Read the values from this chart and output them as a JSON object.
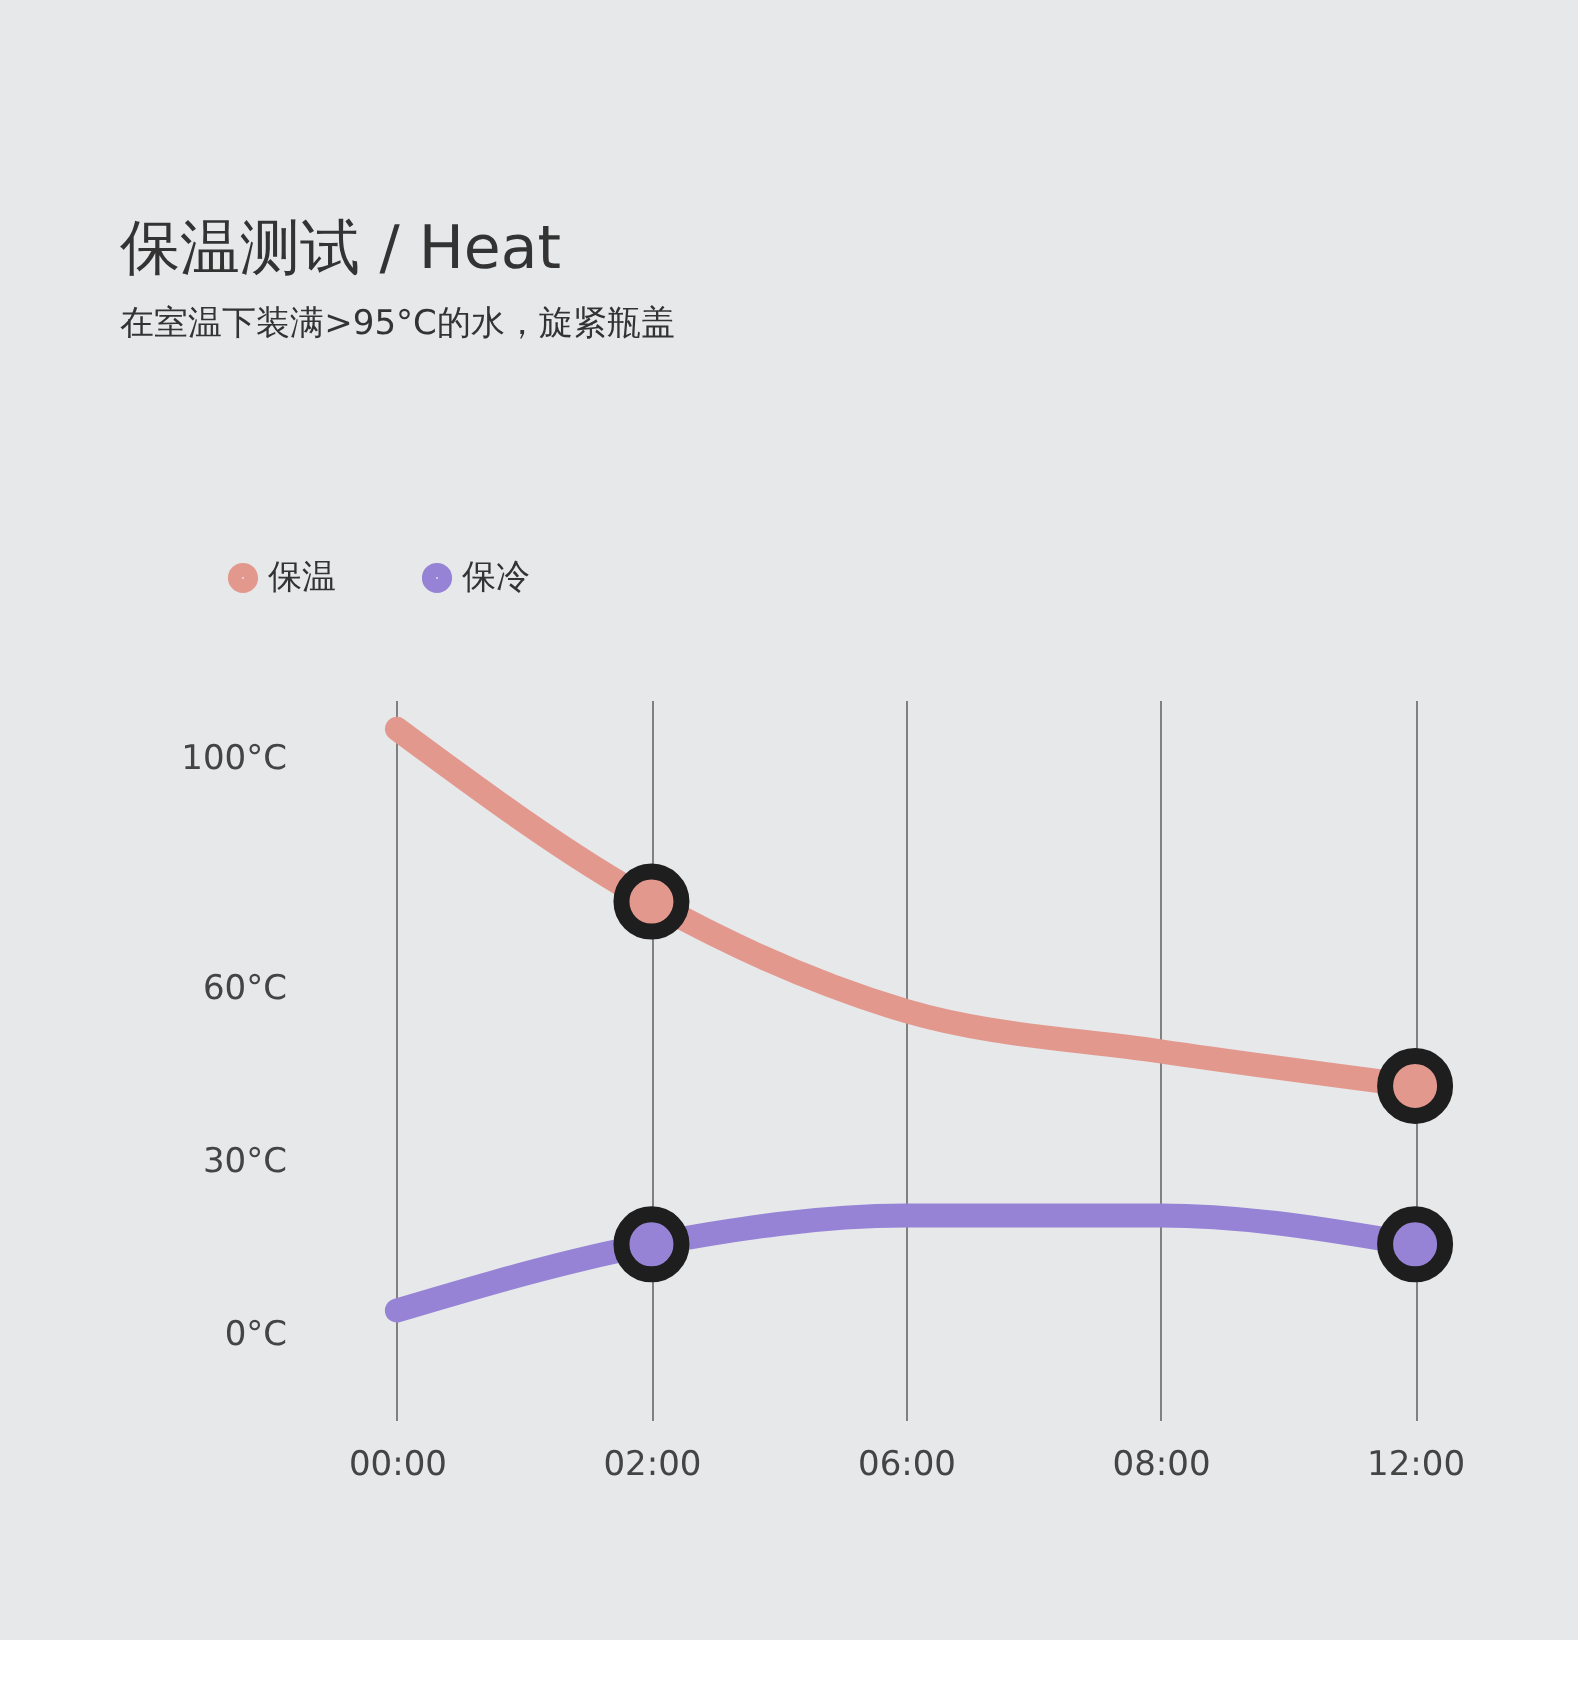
{
  "chart_data": {
    "type": "line",
    "title": "保温测试 / Heat",
    "subtitle": "在室温下装满>95°C的水，旋紧瓶盖",
    "categories": [
      "00:00",
      "02:00",
      "06:00",
      "08:00",
      "12:00"
    ],
    "series": [
      {
        "name": "保温",
        "color": "#e3988e",
        "values": [
          105,
          75,
          56,
          49,
          43
        ]
      },
      {
        "name": "保冷",
        "color": "#9683d6",
        "values": [
          4,
          15.5,
          20.5,
          20.5,
          15.5
        ]
      },
      {
        "type": "scatter",
        "marker": "circle",
        "color": "#e3988e",
        "x": [
          "02:00",
          "12:00"
        ],
        "values": [
          75,
          43
        ]
      },
      {
        "type": "scatter",
        "marker": "circle",
        "color": "#9683d6",
        "x": [
          "02:00",
          "12:00"
        ],
        "values": [
          15.5,
          15.5
        ]
      }
    ],
    "ylim": [
      -15,
      110
    ],
    "yticks": [
      {
        "value": 0,
        "label": "0°C"
      },
      {
        "value": 30,
        "label": "30°C"
      },
      {
        "value": 60,
        "label": "60°C"
      },
      {
        "value": 100,
        "label": "100°C"
      }
    ],
    "grid": "x",
    "legend": "top left",
    "line_style": "solid"
  }
}
